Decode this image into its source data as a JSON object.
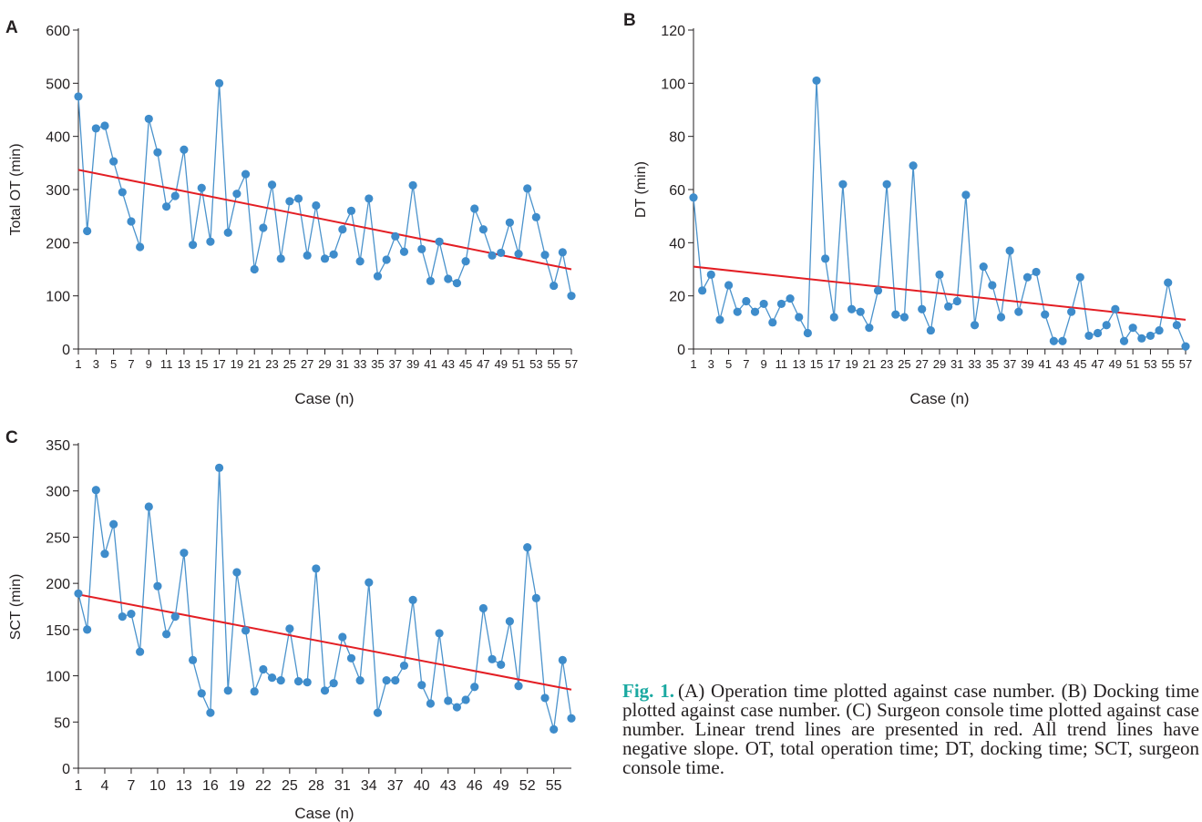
{
  "colors": {
    "series": "#4b93cc",
    "point": "#3e8ccb",
    "trend": "#e31e24",
    "axis": "#231f20",
    "caption_label": "#1aa9a1"
  },
  "caption": {
    "label": "Fig. 1.",
    "text": "(A) Operation time plotted against case number. (B) Docking time plotted against case number. (C) Surgeon console time plotted against case number. Linear trend lines are presented in red. All trend lines have negative slope. OT, total operation time; DT, docking time; SCT, surgeon console time."
  },
  "chart_data": [
    {
      "panel": "A",
      "type": "line",
      "xlabel": "Case (n)",
      "ylabel": "Total OT (min)",
      "ylim": [
        0,
        600
      ],
      "yticks": [
        "0",
        "100",
        "200",
        "300",
        "400",
        "500",
        "600"
      ],
      "xticks": [
        "1",
        "3",
        "5",
        "7",
        "9",
        "11",
        "13",
        "15",
        "17",
        "19",
        "21",
        "23",
        "25",
        "27",
        "29",
        "31",
        "33",
        "35",
        "37",
        "39",
        "41",
        "43",
        "45",
        "47",
        "49",
        "51",
        "53",
        "55",
        "57"
      ],
      "x": [
        1,
        2,
        3,
        4,
        5,
        6,
        7,
        8,
        9,
        10,
        11,
        12,
        13,
        14,
        15,
        16,
        17,
        18,
        19,
        20,
        21,
        22,
        23,
        24,
        25,
        26,
        27,
        28,
        29,
        30,
        31,
        32,
        33,
        34,
        35,
        36,
        37,
        38,
        39,
        40,
        41,
        42,
        43,
        44,
        45,
        46,
        47,
        48,
        49,
        50,
        51,
        52,
        53,
        54,
        55,
        56,
        57
      ],
      "series": [
        {
          "values": [
            475,
            222,
            415,
            420,
            353,
            295,
            240,
            192,
            433,
            370,
            268,
            288,
            375,
            196,
            303,
            202,
            500,
            219,
            292,
            329,
            150,
            228,
            309,
            170,
            278,
            283,
            176,
            270,
            170,
            178,
            225,
            260,
            165,
            283,
            137,
            168,
            212,
            183,
            308,
            188,
            128,
            202,
            132,
            124,
            165,
            264,
            225,
            176,
            181,
            238,
            179,
            302,
            248,
            177,
            119,
            182,
            100
          ]
        }
      ],
      "trend": {
        "start": 337,
        "end": 150
      }
    },
    {
      "panel": "B",
      "type": "line",
      "xlabel": "Case (n)",
      "ylabel": "DT (min)",
      "ylim": [
        0,
        120
      ],
      "yticks": [
        "0",
        "20",
        "40",
        "60",
        "80",
        "100",
        "120"
      ],
      "xticks": [
        "1",
        "3",
        "5",
        "7",
        "9",
        "11",
        "13",
        "15",
        "17",
        "19",
        "21",
        "23",
        "25",
        "27",
        "29",
        "31",
        "33",
        "35",
        "37",
        "39",
        "41",
        "43",
        "45",
        "47",
        "49",
        "51",
        "53",
        "55",
        "57"
      ],
      "x": [
        1,
        2,
        3,
        4,
        5,
        6,
        7,
        8,
        9,
        10,
        11,
        12,
        13,
        14,
        15,
        16,
        17,
        18,
        19,
        20,
        21,
        22,
        23,
        24,
        25,
        26,
        27,
        28,
        29,
        30,
        31,
        32,
        33,
        34,
        35,
        36,
        37,
        38,
        39,
        40,
        41,
        42,
        43,
        44,
        45,
        46,
        47,
        48,
        49,
        50,
        51,
        52,
        53,
        54,
        55,
        56,
        57
      ],
      "series": [
        {
          "values": [
            57,
            22,
            28,
            11,
            24,
            14,
            18,
            14,
            17,
            10,
            17,
            19,
            12,
            6,
            101,
            34,
            12,
            62,
            15,
            14,
            8,
            22,
            62,
            13,
            12,
            69,
            15,
            7,
            28,
            16,
            18,
            58,
            9,
            31,
            24,
            12,
            37,
            14,
            27,
            29,
            13,
            3,
            3,
            14,
            27,
            5,
            6,
            9,
            15,
            3,
            8,
            4,
            5,
            7,
            25,
            9,
            1
          ]
        }
      ],
      "trend": {
        "start": 31,
        "end": 11
      }
    },
    {
      "panel": "C",
      "type": "line",
      "xlabel": "Case (n)",
      "ylabel": "SCT (min)",
      "ylim": [
        0,
        350
      ],
      "yticks": [
        "0",
        "50",
        "100",
        "150",
        "200",
        "250",
        "300",
        "350"
      ],
      "xticks": [
        "1",
        "4",
        "7",
        "10",
        "13",
        "16",
        "19",
        "22",
        "25",
        "28",
        "31",
        "34",
        "37",
        "40",
        "43",
        "46",
        "49",
        "52",
        "55"
      ],
      "x": [
        1,
        2,
        3,
        4,
        5,
        6,
        7,
        8,
        9,
        10,
        11,
        12,
        13,
        14,
        15,
        16,
        17,
        18,
        19,
        20,
        21,
        22,
        23,
        24,
        25,
        26,
        27,
        28,
        29,
        30,
        31,
        32,
        33,
        34,
        35,
        36,
        37,
        38,
        39,
        40,
        41,
        42,
        43,
        44,
        45,
        46,
        47,
        48,
        49,
        50,
        51,
        52,
        53,
        54,
        55,
        56,
        57
      ],
      "series": [
        {
          "values": [
            189,
            150,
            301,
            232,
            264,
            164,
            167,
            126,
            283,
            197,
            145,
            164,
            233,
            117,
            81,
            60,
            325,
            84,
            212,
            149,
            83,
            107,
            98,
            95,
            151,
            94,
            93,
            216,
            84,
            92,
            142,
            119,
            95,
            201,
            60,
            95,
            95,
            111,
            182,
            90,
            70,
            146,
            73,
            66,
            74,
            88,
            173,
            118,
            112,
            159,
            89,
            239,
            184,
            76,
            42,
            117,
            54
          ]
        }
      ],
      "trend": {
        "start": 188,
        "end": 85
      }
    }
  ]
}
